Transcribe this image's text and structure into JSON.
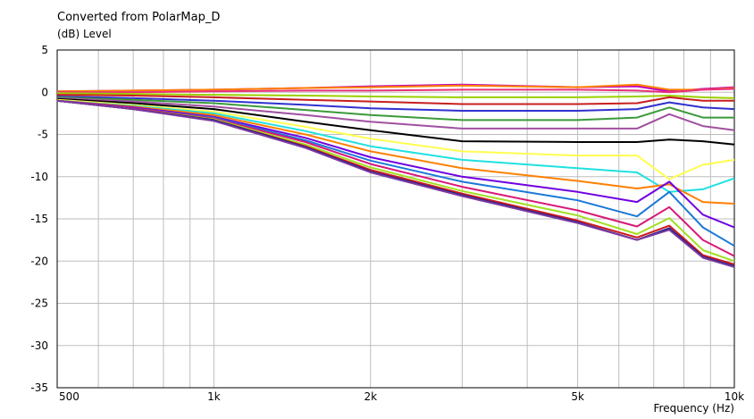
{
  "chart_data": {
    "type": "line",
    "title": "Converted from PolarMap_D",
    "ylabel": "(dB)  Level",
    "xlabel": "Frequency  (Hz)",
    "xscale": "log",
    "xlim": [
      500,
      10000
    ],
    "ylim": [
      -35,
      5
    ],
    "grid": true,
    "x_ticks": [
      {
        "value": 500,
        "label": "500"
      },
      {
        "value": 1000,
        "label": "1k"
      },
      {
        "value": 2000,
        "label": "2k"
      },
      {
        "value": 5000,
        "label": "5k"
      },
      {
        "value": 10000,
        "label": "10k"
      }
    ],
    "y_ticks": [
      {
        "value": 5,
        "label": "5"
      },
      {
        "value": 0,
        "label": "0"
      },
      {
        "value": -5,
        "label": "-5"
      },
      {
        "value": -10,
        "label": "-10"
      },
      {
        "value": -15,
        "label": "-15"
      },
      {
        "value": -20,
        "label": "-20"
      },
      {
        "value": -25,
        "label": "-25"
      },
      {
        "value": -30,
        "label": "-30"
      },
      {
        "value": -35,
        "label": "-35"
      }
    ],
    "x": [
      500,
      700,
      1000,
      1500,
      2000,
      3000,
      5000,
      6500,
      7500,
      8700,
      10000
    ],
    "series": [
      {
        "color": "#c000c0",
        "values": [
          0.1,
          0.2,
          0.3,
          0.5,
          0.7,
          0.9,
          0.6,
          0.7,
          0.1,
          0.4,
          0.6
        ]
      },
      {
        "color": "#ff7f00",
        "values": [
          0.1,
          0.2,
          0.3,
          0.5,
          0.6,
          0.8,
          0.6,
          0.9,
          0.3,
          0.3,
          0.5
        ]
      },
      {
        "color": "#e8307a",
        "values": [
          0.0,
          0.0,
          0.1,
          0.2,
          0.2,
          0.3,
          0.3,
          0.2,
          0.0,
          0.3,
          0.4
        ]
      },
      {
        "color": "#9bd000",
        "values": [
          -0.1,
          -0.2,
          -0.3,
          -0.4,
          -0.5,
          -0.6,
          -0.6,
          -0.5,
          -0.4,
          -0.6,
          -0.7
        ]
      },
      {
        "color": "#c81e1e",
        "values": [
          -0.3,
          -0.4,
          -0.6,
          -0.9,
          -1.1,
          -1.4,
          -1.4,
          -1.3,
          -0.6,
          -1.0,
          -1.0
        ]
      },
      {
        "color": "#3030d0",
        "values": [
          -0.5,
          -0.7,
          -1.0,
          -1.5,
          -1.9,
          -2.2,
          -2.2,
          -2.0,
          -1.2,
          -1.8,
          -2.0
        ]
      },
      {
        "color": "#3a9a3a",
        "values": [
          -0.6,
          -0.9,
          -1.3,
          -2.1,
          -2.7,
          -3.3,
          -3.3,
          -3.0,
          -1.8,
          -3.0,
          -3.0
        ]
      },
      {
        "color": "#a050a0",
        "values": [
          -0.7,
          -1.1,
          -1.7,
          -2.7,
          -3.5,
          -4.3,
          -4.3,
          -4.3,
          -2.6,
          -4.0,
          -4.5
        ]
      },
      {
        "color": "#000000",
        "values": [
          -0.8,
          -1.3,
          -2.0,
          -3.5,
          -4.5,
          -5.8,
          -5.9,
          -5.9,
          -5.6,
          -5.8,
          -6.2
        ]
      },
      {
        "color": "#ffff50",
        "values": [
          -0.9,
          -1.5,
          -2.3,
          -4.1,
          -5.5,
          -7.0,
          -7.5,
          -7.5,
          -10.3,
          -8.6,
          -8.0
        ]
      },
      {
        "color": "#20e0e0",
        "values": [
          -1.0,
          -1.6,
          -2.5,
          -4.6,
          -6.4,
          -8.0,
          -9.0,
          -9.5,
          -11.8,
          -11.5,
          -10.2
        ]
      },
      {
        "color": "#ff8000",
        "values": [
          -1.0,
          -1.7,
          -2.7,
          -5.0,
          -7.0,
          -9.0,
          -10.5,
          -11.4,
          -10.9,
          -13.0,
          -13.2
        ]
      },
      {
        "color": "#7000e0",
        "values": [
          -1.0,
          -1.8,
          -2.9,
          -5.4,
          -7.7,
          -10.0,
          -11.8,
          -13.0,
          -10.6,
          -14.5,
          -16.0
        ]
      },
      {
        "color": "#1a78d8",
        "values": [
          -1.0,
          -1.9,
          -3.0,
          -5.7,
          -8.1,
          -10.6,
          -12.8,
          -14.7,
          -11.8,
          -16.0,
          -18.2
        ]
      },
      {
        "color": "#d81878",
        "values": [
          -1.0,
          -1.9,
          -3.1,
          -5.9,
          -8.5,
          -11.2,
          -14.0,
          -15.9,
          -13.6,
          -17.5,
          -19.4
        ]
      },
      {
        "color": "#a0e020",
        "values": [
          -1.0,
          -2.0,
          -3.2,
          -6.2,
          -8.9,
          -11.7,
          -14.6,
          -16.8,
          -14.9,
          -18.7,
          -20.0
        ]
      },
      {
        "color": "#d01818",
        "values": [
          -1.0,
          -2.0,
          -3.3,
          -6.4,
          -9.2,
          -12.0,
          -15.2,
          -17.2,
          -15.8,
          -19.3,
          -20.4
        ]
      },
      {
        "color": "#202090",
        "values": [
          -1.0,
          -2.0,
          -3.3,
          -6.5,
          -9.4,
          -12.2,
          -15.4,
          -17.5,
          -16.1,
          -19.5,
          -20.6
        ]
      },
      {
        "color": "#7a3aa0",
        "values": [
          -1.0,
          -2.0,
          -3.4,
          -6.6,
          -9.5,
          -12.3,
          -15.5,
          -17.5,
          -16.3,
          -19.6,
          -20.7
        ]
      }
    ]
  }
}
